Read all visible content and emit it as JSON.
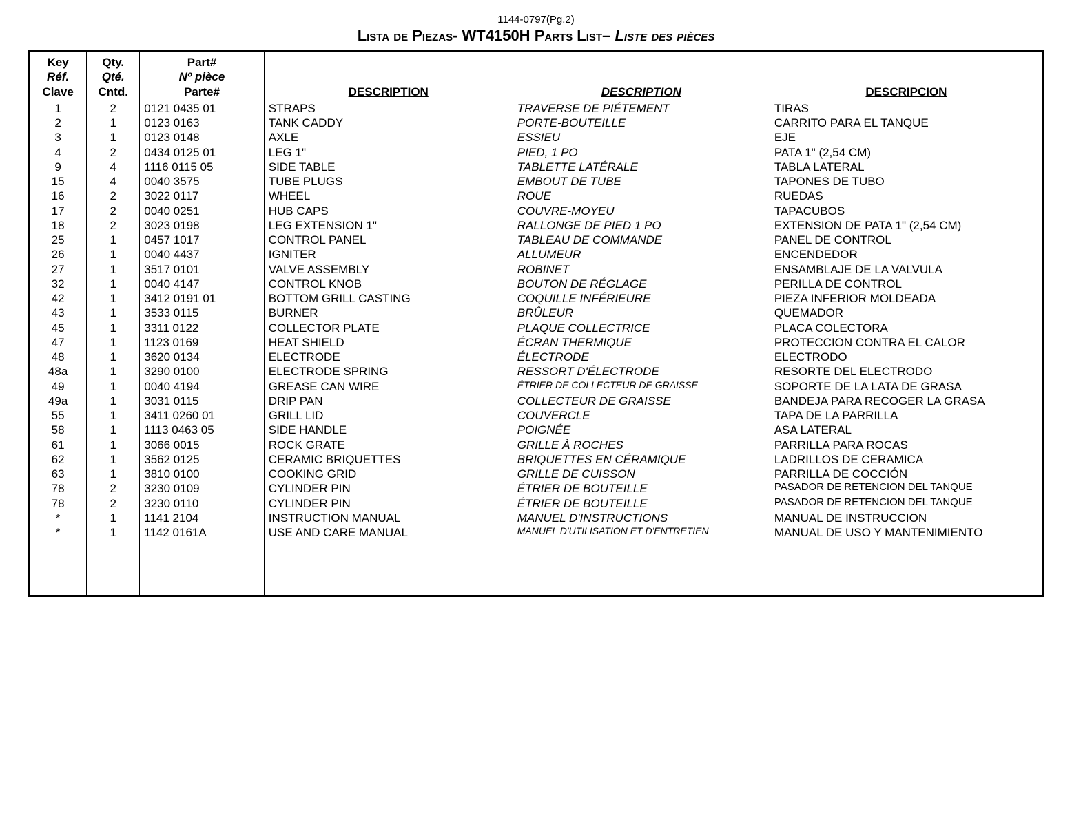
{
  "page_ref": "1144-0797(Pg.2)",
  "title_es": "Lista de Piezas",
  "title_model": "- WT4150H ",
  "title_en": "Parts List– ",
  "title_fr": "Liste des pièces",
  "headers": {
    "key": {
      "l1": "Key",
      "l2": "Réf.",
      "l3": "Clave"
    },
    "qty": {
      "l1": "Qty.",
      "l2": "Qté.",
      "l3": "Cntd."
    },
    "part": {
      "l1": "Part#",
      "l2": "Nº pièce",
      "l3": "Parte#"
    },
    "d1": {
      "label": "DESCRIPTION"
    },
    "d2": {
      "label": "DESCRIPTION"
    },
    "d3": {
      "label": "DESCRIPCION"
    }
  },
  "rows": [
    {
      "key": "1",
      "qty": "2",
      "part": "0121 0435 01",
      "en": "STRAPS",
      "fr": "TRAVERSE DE PIÉTEMENT",
      "es": "TIRAS"
    },
    {
      "key": "2",
      "qty": "1",
      "part": "0123 0163",
      "en": "TANK CADDY",
      "fr": "PORTE-BOUTEILLE",
      "es": "CARRITO PARA EL TANQUE"
    },
    {
      "key": "3",
      "qty": "1",
      "part": "0123 0148",
      "en": "AXLE",
      "fr": "ESSIEU",
      "es": "EJE"
    },
    {
      "key": "4",
      "qty": "2",
      "part": "0434 0125 01",
      "en": "LEG 1\"",
      "fr": "PIED, 1 PO",
      "es": "PATA 1\" (2,54 CM)"
    },
    {
      "key": "9",
      "qty": "4",
      "part": "1116 0115 05",
      "en": "SIDE TABLE",
      "fr": "TABLETTE LATÉRALE",
      "es": "TABLA LATERAL"
    },
    {
      "key": "15",
      "qty": "4",
      "part": "0040 3575",
      "en": "TUBE PLUGS",
      "fr": "EMBOUT DE TUBE",
      "es": "TAPONES DE TUBO"
    },
    {
      "key": "16",
      "qty": "2",
      "part": "3022 0117",
      "en": "WHEEL",
      "fr": "ROUE",
      "es": "RUEDAS"
    },
    {
      "key": "17",
      "qty": "2",
      "part": "0040 0251",
      "en": "HUB CAPS",
      "fr": "COUVRE-MOYEU",
      "es": "TAPACUBOS"
    },
    {
      "key": "18",
      "qty": "2",
      "part": "3023 0198",
      "en": "LEG EXTENSION 1\"",
      "fr": "RALLONGE DE PIED 1 PO",
      "es": "EXTENSION DE PATA 1\"  (2,54 CM)"
    },
    {
      "key": "25",
      "qty": "1",
      "part": "0457 1017",
      "en": "CONTROL PANEL",
      "fr": "TABLEAU DE COMMANDE",
      "es": "PANEL DE CONTROL"
    },
    {
      "key": "26",
      "qty": "1",
      "part": "0040 4437",
      "en": "IGNITER",
      "fr": "ALLUMEUR",
      "es": "ENCENDEDOR"
    },
    {
      "key": "27",
      "qty": "1",
      "part": "3517 0101",
      "en": "VALVE ASSEMBLY",
      "fr": "ROBINET",
      "es": "ENSAMBLAJE DE LA VALVULA"
    },
    {
      "key": "32",
      "qty": "1",
      "part": "0040 4147",
      "en": "CONTROL KNOB",
      "fr": "BOUTON DE RÉGLAGE",
      "es": "PERILLA DE CONTROL"
    },
    {
      "key": "42",
      "qty": "1",
      "part": "3412 0191 01",
      "en": "BOTTOM GRILL CASTING",
      "fr": "COQUILLE INFÉRIEURE",
      "es": "PIEZA INFERIOR MOLDEADA"
    },
    {
      "key": "43",
      "qty": "1",
      "part": "3533 0115",
      "en": "BURNER",
      "fr": "BRÛLEUR",
      "es": "QUEMADOR"
    },
    {
      "key": "45",
      "qty": "1",
      "part": "3311 0122",
      "en": "COLLECTOR PLATE",
      "fr": "PLAQUE COLLECTRICE",
      "es": "PLACA COLECTORA"
    },
    {
      "key": "47",
      "qty": "1",
      "part": "1123 0169",
      "en": "HEAT SHIELD",
      "fr": "ÉCRAN THERMIQUE",
      "es": "PROTECCION CONTRA EL CALOR"
    },
    {
      "key": "48",
      "qty": "1",
      "part": "3620 0134",
      "en": "ELECTRODE",
      "fr": "ÉLECTRODE",
      "es": "ELECTRODO"
    },
    {
      "key": "48a",
      "qty": "1",
      "part": "3290 0100",
      "en": "ELECTRODE SPRING",
      "fr": "RESSORT D'ÉLECTRODE",
      "es": "RESORTE DEL ELECTRODO"
    },
    {
      "key": "49",
      "qty": "1",
      "part": "0040 4194",
      "en": "GREASE CAN WIRE",
      "fr": "ÉTRIER DE COLLECTEUR DE GRAISSE",
      "es": "SOPORTE DE LA LATA DE GRASA",
      "fr_small": true
    },
    {
      "key": "49a",
      "qty": "1",
      "part": "3031 0115",
      "en": "DRIP PAN",
      "fr": "COLLECTEUR DE GRAISSE",
      "es": "BANDEJA PARA RECOGER LA GRASA"
    },
    {
      "key": "55",
      "qty": "1",
      "part": "3411 0260 01",
      "en": "GRILL LID",
      "fr": "COUVERCLE",
      "es": "TAPA DE LA PARRILLA"
    },
    {
      "key": "58",
      "qty": "1",
      "part": "1113 0463 05",
      "en": "SIDE HANDLE",
      "fr": "POIGNÉE",
      "es": "ASA LATERAL"
    },
    {
      "key": "61",
      "qty": "1",
      "part": "3066 0015",
      "en": "ROCK GRATE",
      "fr": "GRILLE À ROCHES",
      "es": "PARRILLA PARA ROCAS"
    },
    {
      "key": "62",
      "qty": "1",
      "part": "3562 0125",
      "en": "CERAMIC BRIQUETTES",
      "fr": "BRIQUETTES EN CÉRAMIQUE",
      "es": "LADRILLOS DE CERAMICA"
    },
    {
      "key": "63",
      "qty": "1",
      "part": "3810 0100",
      "en": "COOKING GRID",
      "fr": "GRILLE DE CUISSON",
      "es": "PARRILLA DE COCCIÓN"
    },
    {
      "key": "78",
      "qty": "2",
      "part": "3230 0109",
      "en": "CYLINDER PIN",
      "fr": "ÉTRIER DE BOUTEILLE",
      "es": "PASADOR DE RETENCION DEL TANQUE",
      "es_small": true
    },
    {
      "key": "78",
      "qty": "2",
      "part": "3230 0110",
      "en": "CYLINDER PIN",
      "fr": "ÉTRIER DE BOUTEILLE",
      "es": "PASADOR DE RETENCION DEL TANQUE",
      "es_small": true
    },
    {
      "key": "*",
      "qty": "1",
      "part": "1141 2104",
      "en": "INSTRUCTION MANUAL",
      "fr": "MANUEL D'INSTRUCTIONS",
      "es": "MANUAL DE INSTRUCCION"
    },
    {
      "key": "*",
      "qty": "1",
      "part": "1142 0161A",
      "en": "USE AND CARE MANUAL",
      "fr": "MANUEL D'UTILISATION ET D'ENTRETIEN",
      "es": "MANUAL DE USO Y MANTENIMIENTO",
      "fr_small": true
    }
  ]
}
